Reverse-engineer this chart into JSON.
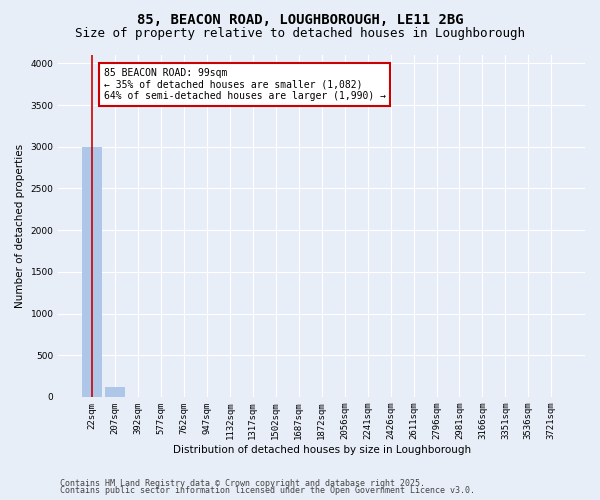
{
  "title_line1": "85, BEACON ROAD, LOUGHBOROUGH, LE11 2BG",
  "title_line2": "Size of property relative to detached houses in Loughborough",
  "xlabel": "Distribution of detached houses by size in Loughborough",
  "ylabel": "Number of detached properties",
  "categories": [
    "22sqm",
    "207sqm",
    "392sqm",
    "577sqm",
    "762sqm",
    "947sqm",
    "1132sqm",
    "1317sqm",
    "1502sqm",
    "1687sqm",
    "1872sqm",
    "2056sqm",
    "2241sqm",
    "2426sqm",
    "2611sqm",
    "2796sqm",
    "2981sqm",
    "3166sqm",
    "3351sqm",
    "3536sqm",
    "3721sqm"
  ],
  "values": [
    3000,
    115,
    5,
    2,
    1,
    1,
    0,
    0,
    0,
    0,
    0,
    0,
    0,
    0,
    0,
    0,
    0,
    0,
    0,
    0,
    0
  ],
  "bar_color": "#aec6e8",
  "vline_color": "#cc0000",
  "annotation_text": "85 BEACON ROAD: 99sqm\n← 35% of detached houses are smaller (1,082)\n64% of semi-detached houses are larger (1,990) →",
  "annotation_box_color": "#cc0000",
  "annotation_bg": "#ffffff",
  "ylim": [
    0,
    4100
  ],
  "yticks": [
    0,
    500,
    1000,
    1500,
    2000,
    2500,
    3000,
    3500,
    4000
  ],
  "background_color": "#e8eef8",
  "grid_color": "#ffffff",
  "footer_line1": "Contains HM Land Registry data © Crown copyright and database right 2025.",
  "footer_line2": "Contains public sector information licensed under the Open Government Licence v3.0.",
  "title_fontsize": 10,
  "subtitle_fontsize": 9,
  "axis_label_fontsize": 7.5,
  "tick_fontsize": 6.5,
  "annotation_fontsize": 7,
  "footer_fontsize": 6
}
